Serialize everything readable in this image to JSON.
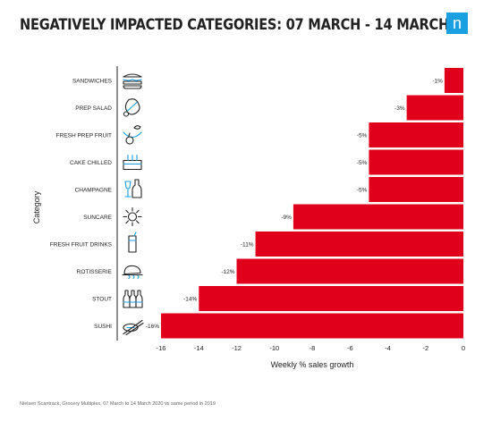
{
  "title": "NEGATIVELY IMPACTED CATEGORIES: 07 MARCH - 14 MARCH",
  "logo": {
    "glyph": "n",
    "icon": "nielsen-logo-icon",
    "color": "#1a9fe0"
  },
  "source": "Nielsen Scantrack, Grocery Multiples, 07 March to 14 March 2020 vs same period in 2019",
  "chart_data": {
    "type": "bar",
    "orientation": "horizontal",
    "categories": [
      "SANDWICHES",
      "PREP SALAD",
      "FRESH PREP FRUIT",
      "CAKE CHILLED",
      "CHAMPAGNE",
      "SUNCARE",
      "FRESH FRUIT DRINKS",
      "ROTISSERIE",
      "STOUT",
      "SUSHI"
    ],
    "values": [
      -1,
      -3,
      -5,
      -5,
      -5,
      -9,
      -11,
      -12,
      -14,
      -16
    ],
    "data_labels": [
      "-1%",
      "-3%",
      "-5%",
      "-5%",
      "-5%",
      "-9%",
      "-11%",
      "-12%",
      "-14%",
      "-16%"
    ],
    "icons": [
      "sandwich-icon",
      "salad-icon",
      "fruit-icon",
      "cake-icon",
      "champagne-icon",
      "sun-icon",
      "fruit-drink-icon",
      "rotisserie-chicken-icon",
      "stout-bottles-icon",
      "sushi-icon"
    ],
    "xlabel": "Weekly % sales growth",
    "ylabel": "Category",
    "xlim": [
      -16,
      0
    ],
    "xticks": [
      -16,
      -14,
      -12,
      -10,
      -8,
      -6,
      -4,
      -2,
      0
    ],
    "bar_color": "#e0001b",
    "icon_color": "#1a9fe0",
    "grid": false,
    "legend": "none"
  }
}
